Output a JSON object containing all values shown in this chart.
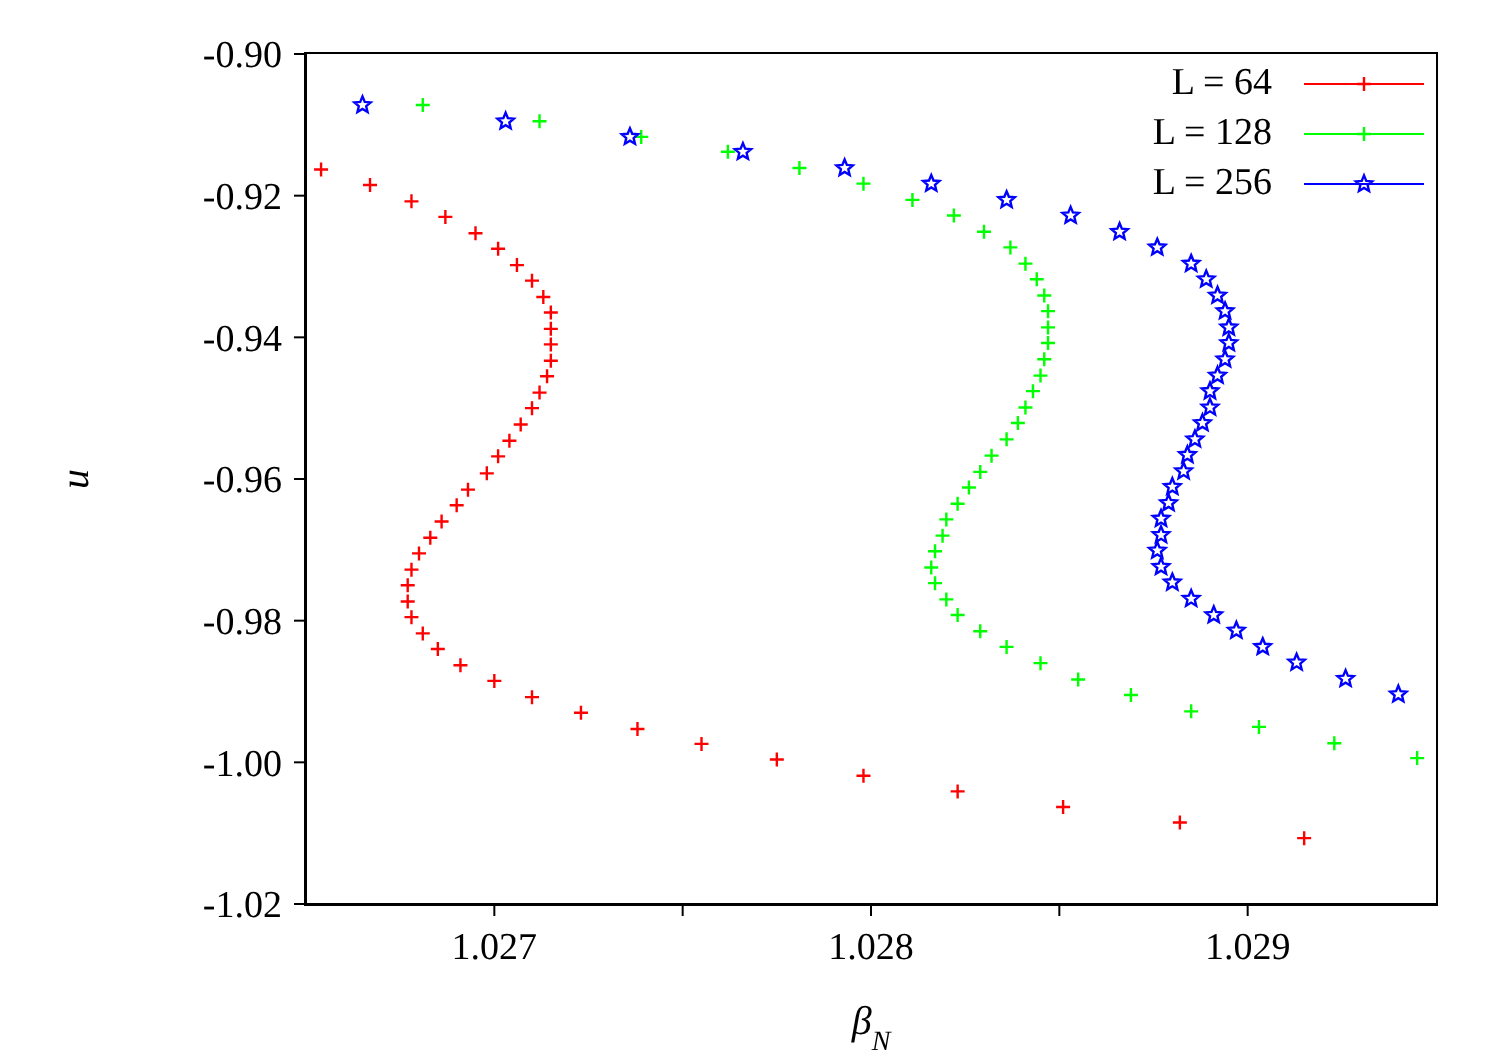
{
  "chart_data": {
    "type": "scatter",
    "xlabel": "β$_{N}$",
    "ylabel": "u",
    "xlim": [
      1.0265,
      1.0295
    ],
    "xticks": [
      1.027,
      {
        "value": 1.0275,
        "label": null
      },
      1.028,
      {
        "value": 1.0285,
        "label": null
      },
      1.029
    ],
    "ylim": [
      -1.02,
      -0.9
    ],
    "yticks": [
      {
        "value": -1.02,
        "label": "-1.02"
      },
      {
        "value": -1.0,
        "label": "-1.00"
      },
      {
        "value": -0.98,
        "label": "-0.98"
      },
      {
        "value": -0.96,
        "label": "-0.96"
      },
      {
        "value": -0.94,
        "label": "-0.94"
      },
      {
        "value": -0.92,
        "label": "-0.92"
      },
      {
        "value": -0.9,
        "label": "-0.90"
      }
    ],
    "grid": false,
    "legend": "top right",
    "series": [
      {
        "name": "L = 64",
        "color": "#ff0000",
        "marker": "cross",
        "x": [
          1.02654,
          1.02667,
          1.02678,
          1.02687,
          1.02695,
          1.02701,
          1.02706,
          1.0271,
          1.02713,
          1.02715,
          1.02715,
          1.02715,
          1.02715,
          1.02714,
          1.02712,
          1.0271,
          1.02707,
          1.02704,
          1.02701,
          1.02698,
          1.02693,
          1.0269,
          1.02686,
          1.02683,
          1.0268,
          1.02678,
          1.02677,
          1.02677,
          1.02678,
          1.02681,
          1.02685,
          1.02691,
          1.027,
          1.0271,
          1.02723,
          1.02738,
          1.02755,
          1.02775,
          1.02798,
          1.02823,
          1.02851,
          1.02882,
          1.02915
        ],
        "values": [
          -0.9163,
          -0.9185,
          -0.9208,
          -0.923,
          -0.9253,
          -0.9275,
          -0.9298,
          -0.932,
          -0.9343,
          -0.9365,
          -0.9388,
          -0.941,
          -0.9433,
          -0.9455,
          -0.9478,
          -0.95,
          -0.9523,
          -0.9546,
          -0.9568,
          -0.9592,
          -0.9615,
          -0.9637,
          -0.966,
          -0.9683,
          -0.9705,
          -0.9728,
          -0.975,
          -0.9773,
          -0.9795,
          -0.9818,
          -0.984,
          -0.9863,
          -0.9885,
          -0.9908,
          -0.993,
          -0.9953,
          -0.9974,
          -0.9996,
          -1.0019,
          -1.0041,
          -1.0063,
          -1.0085,
          -1.0107
        ]
      },
      {
        "name": "L = 128",
        "color": "#00ff00",
        "marker": "cross",
        "x": [
          1.02681,
          1.02712,
          1.02739,
          1.02762,
          1.02781,
          1.02798,
          1.02811,
          1.02822,
          1.0283,
          1.02837,
          1.02841,
          1.02844,
          1.02846,
          1.02847,
          1.02847,
          1.02847,
          1.02846,
          1.02845,
          1.02843,
          1.02841,
          1.02839,
          1.02836,
          1.02832,
          1.02829,
          1.02826,
          1.02823,
          1.0282,
          1.02819,
          1.02817,
          1.02816,
          1.02817,
          1.0282,
          1.02823,
          1.02829,
          1.02836,
          1.02845,
          1.02855,
          1.02869,
          1.02885,
          1.02903,
          1.02923,
          1.02945
        ],
        "values": [
          -0.9072,
          -0.9095,
          -0.9117,
          -0.9138,
          -0.9161,
          -0.9183,
          -0.9206,
          -0.9228,
          -0.9251,
          -0.9273,
          -0.9296,
          -0.9318,
          -0.9341,
          -0.9363,
          -0.9386,
          -0.9408,
          -0.9431,
          -0.9454,
          -0.9476,
          -0.9499,
          -0.9521,
          -0.9544,
          -0.9567,
          -0.959,
          -0.9612,
          -0.9635,
          -0.9657,
          -0.968,
          -0.9702,
          -0.9725,
          -0.9747,
          -0.977,
          -0.9792,
          -0.9815,
          -0.9837,
          -0.986,
          -0.9883,
          -0.9905,
          -0.9928,
          -0.995,
          -0.9973,
          -0.9994
        ]
      },
      {
        "name": "L = 256",
        "color": "#0000ff",
        "marker": "star",
        "x": [
          1.02665,
          1.02703,
          1.02736,
          1.02766,
          1.02793,
          1.02816,
          1.02836,
          1.02853,
          1.02866,
          1.02876,
          1.02885,
          1.02889,
          1.02892,
          1.02894,
          1.02895,
          1.02895,
          1.02894,
          1.02892,
          1.0289,
          1.0289,
          1.02888,
          1.02886,
          1.02884,
          1.02883,
          1.0288,
          1.02879,
          1.02877,
          1.02877,
          1.02876,
          1.02877,
          1.0288,
          1.02885,
          1.02891,
          1.02897,
          1.02904,
          1.02913,
          1.02926,
          1.0294
        ],
        "values": [
          -0.9072,
          -0.9095,
          -0.9117,
          -0.9138,
          -0.9161,
          -0.9183,
          -0.9206,
          -0.9228,
          -0.9251,
          -0.9273,
          -0.9296,
          -0.9318,
          -0.9341,
          -0.9363,
          -0.9386,
          -0.9408,
          -0.9431,
          -0.9454,
          -0.9476,
          -0.9499,
          -0.9521,
          -0.9544,
          -0.9566,
          -0.9589,
          -0.9611,
          -0.9634,
          -0.9656,
          -0.9679,
          -0.9701,
          -0.9724,
          -0.9746,
          -0.9769,
          -0.9792,
          -0.9814,
          -0.9837,
          -0.9859,
          -0.9882,
          -0.9904
        ]
      }
    ]
  }
}
